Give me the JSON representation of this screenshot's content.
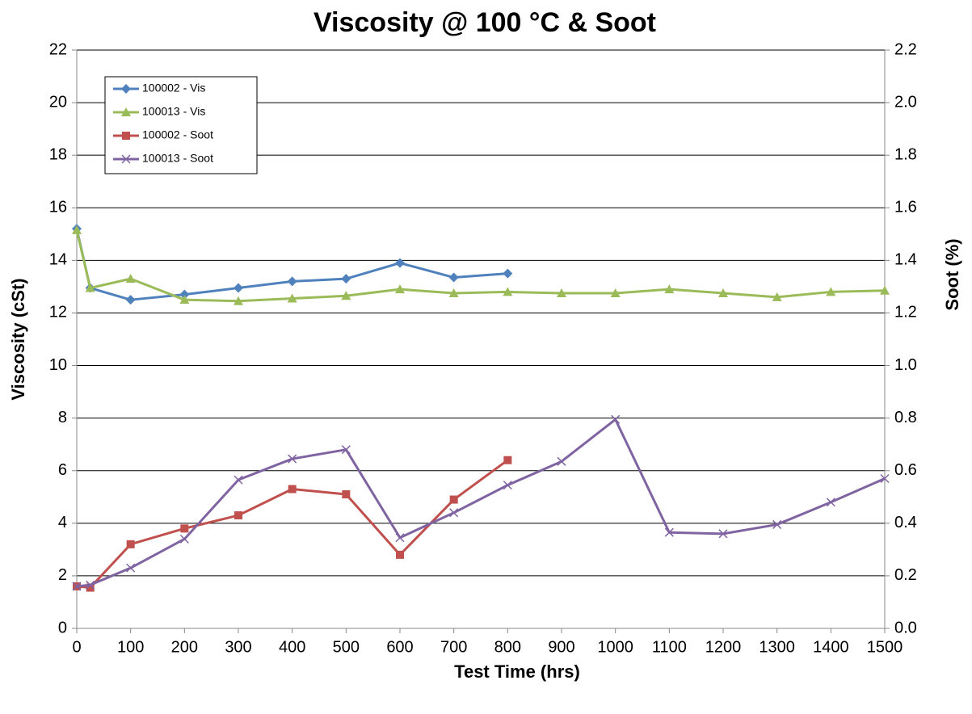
{
  "chart_data": {
    "type": "line",
    "title": "Viscosity @ 100 °C & Soot",
    "xlabel": "Test Time (hrs)",
    "ylabel": "Viscosity (cSt)",
    "y2label": "Soot (%)",
    "x": [
      0,
      25,
      100,
      200,
      300,
      400,
      500,
      600,
      700,
      800,
      900,
      1000,
      1100,
      1200,
      1300,
      1400,
      1500
    ],
    "xlim": [
      0,
      1500
    ],
    "xticks": [
      0,
      100,
      200,
      300,
      400,
      500,
      600,
      700,
      800,
      900,
      1000,
      1100,
      1200,
      1300,
      1400,
      1500
    ],
    "ylim": [
      0,
      22
    ],
    "yticks": [
      0,
      2,
      4,
      6,
      8,
      10,
      12,
      14,
      16,
      18,
      20,
      22
    ],
    "y2lim": [
      0,
      2.2
    ],
    "y2ticks": [
      {
        "value": 0,
        "label": "0.0"
      },
      {
        "value": 0.2,
        "label": "0.2"
      },
      {
        "value": 0.4,
        "label": "0.4"
      },
      {
        "value": 0.6,
        "label": "0.6"
      },
      {
        "value": 0.8,
        "label": "0.8"
      },
      {
        "value": 1,
        "label": "1.0"
      },
      {
        "value": 1.2,
        "label": "1.2"
      },
      {
        "value": 1.4,
        "label": "1.4"
      },
      {
        "value": 1.6,
        "label": "1.6"
      },
      {
        "value": 1.8,
        "label": "1.8"
      },
      {
        "value": 2,
        "label": "2.0"
      },
      {
        "value": 2.2,
        "label": "2.2"
      }
    ],
    "grid": true,
    "legend": "upper left",
    "series": [
      {
        "name": "100002 - Vis",
        "color": "#4f81bd",
        "marker": "diamond",
        "values": [
          15.2,
          12.95,
          12.5,
          12.7,
          12.95,
          13.2,
          13.3,
          13.9,
          13.35,
          13.5,
          null,
          null,
          null,
          null,
          null,
          null,
          null
        ]
      },
      {
        "name": "100013 - Vis",
        "color": "#9bbb59",
        "marker": "triangle",
        "values": [
          15.15,
          12.95,
          13.3,
          12.5,
          12.45,
          12.55,
          12.65,
          12.9,
          12.75,
          12.8,
          12.75,
          12.75,
          12.9,
          12.75,
          12.6,
          12.8,
          12.85
        ]
      },
      {
        "name": "100002 - Soot",
        "color": "#c0504d",
        "marker": "square",
        "axis": "y2",
        "values": [
          0.16,
          0.155,
          0.32,
          0.38,
          0.43,
          0.53,
          0.51,
          0.28,
          0.49,
          0.64,
          null,
          null,
          null,
          null,
          null,
          null,
          null
        ]
      },
      {
        "name": "100013 - Soot",
        "color": "#8064a2",
        "marker": "x",
        "axis": "y2",
        "values": [
          0.16,
          0.165,
          0.23,
          0.34,
          0.565,
          0.645,
          0.68,
          0.345,
          0.44,
          0.545,
          0.635,
          0.795,
          0.365,
          0.36,
          0.395,
          0.48,
          0.57
        ]
      }
    ]
  }
}
